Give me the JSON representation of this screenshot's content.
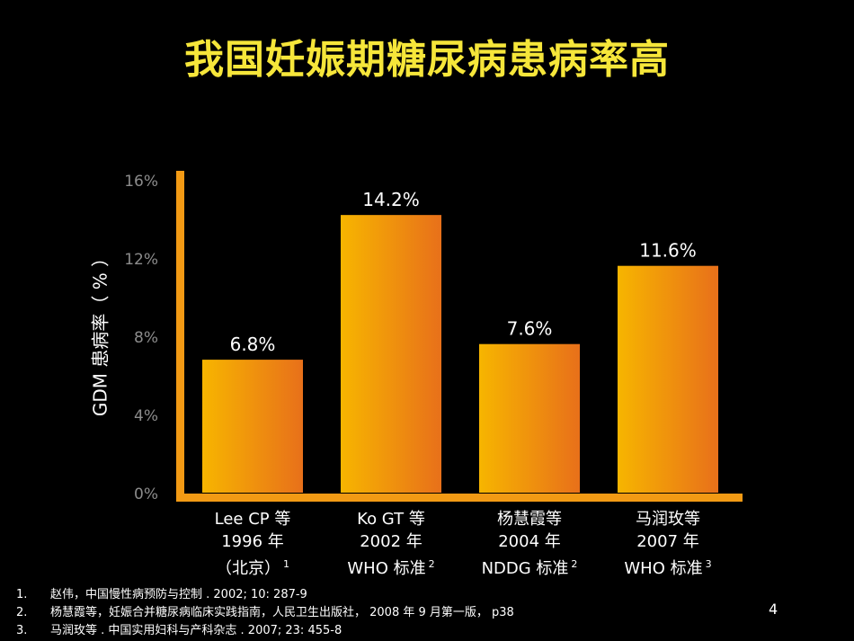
{
  "title": "我国妊娠期糖尿病患病率高",
  "chart_data": {
    "type": "bar",
    "ylabel": "GDM 患病率（ % ）",
    "ylim": [
      0,
      16
    ],
    "yticks": [
      "0%",
      "4%",
      "8%",
      "12%",
      "16%"
    ],
    "categories": [
      {
        "line1": "Lee CP 等",
        "line2": "1996 年",
        "line3": "（北京）",
        "ref": "1"
      },
      {
        "line1": "Ko GT 等",
        "line2": "2002 年",
        "line3": "WHO 标准",
        "ref": "2"
      },
      {
        "line1": "杨慧霞等",
        "line2": "2004 年",
        "line3": "NDDG 标准",
        "ref": "2"
      },
      {
        "line1": "马润玫等",
        "line2": "2007 年",
        "line3": "WHO 标准",
        "ref": "3"
      }
    ],
    "values": [
      6.8,
      14.2,
      7.6,
      11.6
    ],
    "value_labels": [
      "6.8%",
      "14.2%",
      "7.6%",
      "11.6%"
    ],
    "bar_color_start": "#f7b500",
    "bar_color_end": "#e8701a",
    "axis_color": "#f29a14"
  },
  "references": [
    {
      "num": "1.",
      "text": "赵伟，中国慢性病预防与控制 . 2002; 10: 287-9"
    },
    {
      "num": "2.",
      "text": "杨慧霞等，妊娠合并糖尿病临床实践指南，人民卫生出版社， 2008 年 9 月第一版， p38"
    },
    {
      "num": "3.",
      "text": "马润玫等 . 中国实用妇科与产科杂志 . 2007; 23: 455-8"
    }
  ],
  "page_number": "4"
}
